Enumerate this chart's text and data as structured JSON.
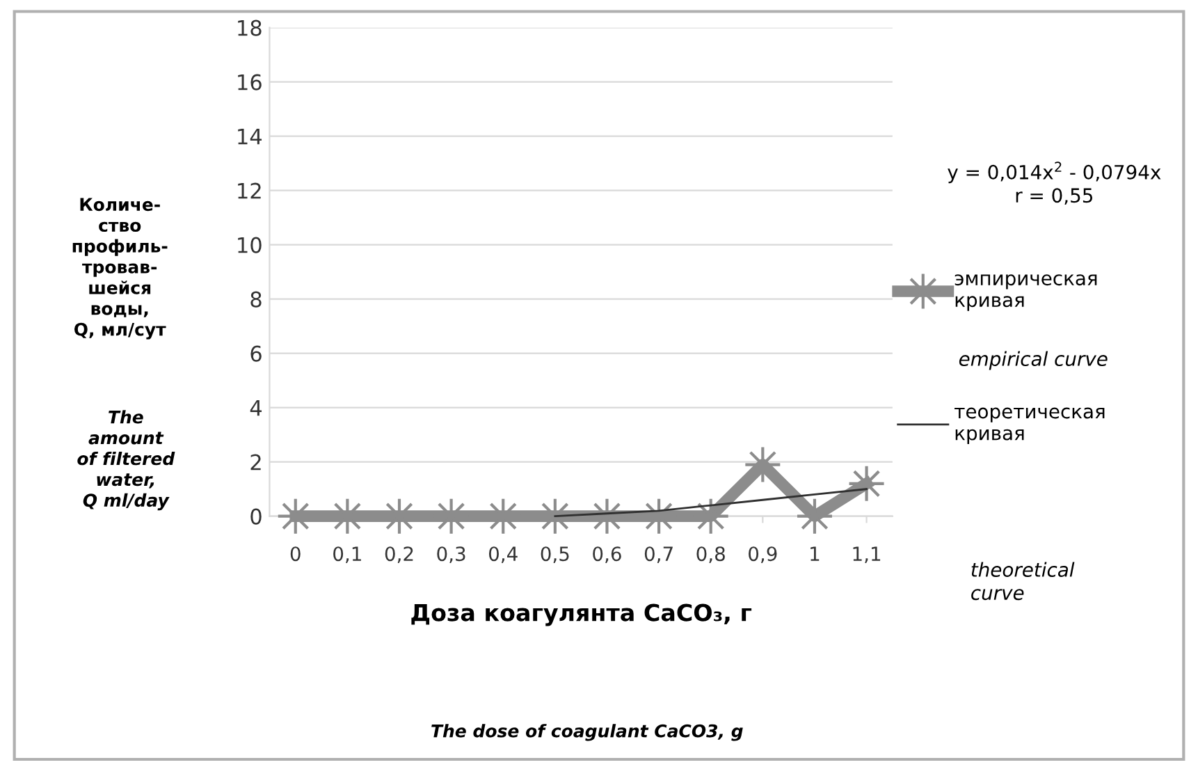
{
  "chart_data": {
    "type": "line",
    "categories": [
      "0",
      "0,1",
      "0,2",
      "0,3",
      "0,4",
      "0,5",
      "0,6",
      "0,7",
      "0,8",
      "0,9",
      "1",
      "1,1"
    ],
    "series": [
      {
        "name": "эмпирическая кривая",
        "color": "#8c8c8c",
        "values": [
          0,
          0,
          0,
          0,
          0,
          0,
          0,
          0,
          0,
          1.9,
          0,
          1.2
        ],
        "marker": "star"
      },
      {
        "name": "теоретическая кривая",
        "color": "#303030",
        "values": [
          null,
          null,
          null,
          null,
          null,
          0,
          0.1,
          0.2,
          0.4,
          0.6,
          0.8,
          1.0
        ],
        "marker": "none"
      }
    ],
    "ylim": [
      0,
      18
    ],
    "yticks": [
      0,
      2,
      4,
      6,
      8,
      10,
      12,
      14,
      16,
      18
    ],
    "grid": "y",
    "legend": "right",
    "xlabel": "Доза коагулянта CaCO₃, г",
    "ylabel": "Количе-\nство\nпрофиль-\nтровав-\nшейся\nводы,\nQ, мл/сут",
    "annotations": [
      "y = 0,014x$^{2}$ - 0,0794x\nr = 0,55",
      "empirical curve",
      "theoretical\ncurve",
      "The\namount\nof filtered\nwater,\nQ ml/day",
      "The dose of coagulant CaCO3, g"
    ]
  }
}
